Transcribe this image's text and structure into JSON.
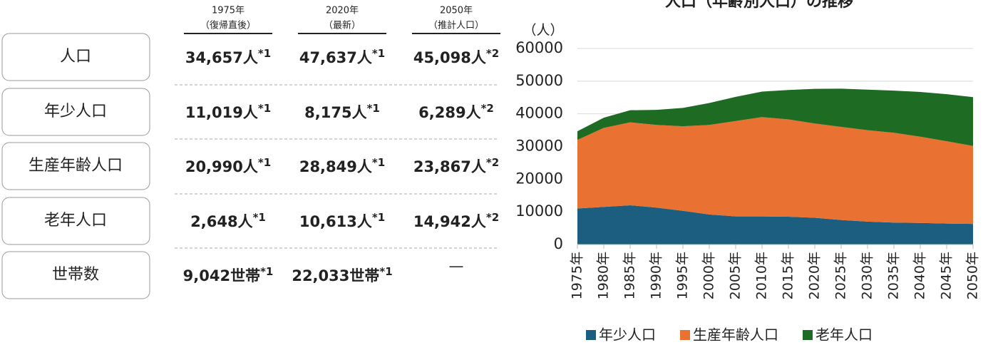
{
  "table": {
    "columns": [
      {
        "year": "1975年",
        "note": "（復帰直後）"
      },
      {
        "year": "2020年",
        "note": "（最新）"
      },
      {
        "year": "2050年",
        "note": "（推計人口）"
      }
    ],
    "rows": [
      {
        "label": "人口",
        "cells": [
          {
            "text": "34,657人",
            "mark": "*1"
          },
          {
            "text": "47,637人",
            "mark": "*1"
          },
          {
            "text": "45,098人",
            "mark": "*2"
          }
        ]
      },
      {
        "label": "年少人口",
        "cells": [
          {
            "text": "11,019人",
            "mark": "*1"
          },
          {
            "text": "8,175人",
            "mark": "*1"
          },
          {
            "text": "6,289人",
            "mark": "*2"
          }
        ]
      },
      {
        "label": "生産年齢人口",
        "cells": [
          {
            "text": "20,990人",
            "mark": "*1"
          },
          {
            "text": "28,849人",
            "mark": "*1"
          },
          {
            "text": "23,867人",
            "mark": "*2"
          }
        ]
      },
      {
        "label": "老年人口",
        "cells": [
          {
            "text": "2,648人",
            "mark": "*1"
          },
          {
            "text": "10,613人",
            "mark": "*1"
          },
          {
            "text": "14,942人",
            "mark": "*2"
          }
        ]
      },
      {
        "label": "世帯数",
        "cells": [
          {
            "text": "9,042世帯",
            "mark": "*1"
          },
          {
            "text": "22,033世帯",
            "mark": "*1"
          },
          {
            "text": "—"
          }
        ]
      }
    ]
  },
  "chart_data": {
    "type": "stacked_area",
    "title": "人口（年齢別人口）の推移",
    "y_label": "（人）",
    "categories": [
      "1975年",
      "1980年",
      "1985年",
      "1990年",
      "1995年",
      "2000年",
      "2005年",
      "2010年",
      "2015年",
      "2020年",
      "2025年",
      "2030年",
      "2035年",
      "2040年",
      "2045年",
      "2050年"
    ],
    "series": [
      {
        "name": "年少人口",
        "color": "#1b5e80",
        "values": [
          11019,
          11500,
          12000,
          11300,
          10300,
          9200,
          8600,
          8600,
          8500,
          8175,
          7500,
          7000,
          6700,
          6600,
          6400,
          6289
        ]
      },
      {
        "name": "生産年齢人口",
        "color": "#e97132",
        "values": [
          20990,
          24200,
          25400,
          25300,
          25900,
          27400,
          29200,
          30400,
          29800,
          28849,
          28500,
          28000,
          27500,
          26400,
          25200,
          23867
        ]
      },
      {
        "name": "老年人口",
        "color": "#1e6b24",
        "values": [
          2648,
          3100,
          3700,
          4600,
          5600,
          6700,
          7400,
          7800,
          9000,
          10613,
          11700,
          12400,
          12900,
          13700,
          14400,
          14942
        ]
      }
    ],
    "ylim": [
      0,
      60000
    ],
    "yticks": [
      0,
      10000,
      20000,
      30000,
      40000,
      50000,
      60000
    ],
    "grid": true,
    "legend": "bottom"
  }
}
